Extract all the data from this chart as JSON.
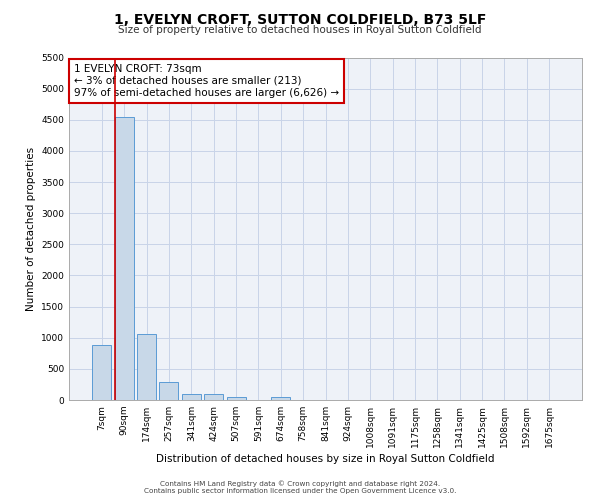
{
  "title_line1": "1, EVELYN CROFT, SUTTON COLDFIELD, B73 5LF",
  "title_line2": "Size of property relative to detached houses in Royal Sutton Coldfield",
  "xlabel": "Distribution of detached houses by size in Royal Sutton Coldfield",
  "ylabel": "Number of detached properties",
  "footer_line1": "Contains HM Land Registry data © Crown copyright and database right 2024.",
  "footer_line2": "Contains public sector information licensed under the Open Government Licence v3.0.",
  "categories": [
    "7sqm",
    "90sqm",
    "174sqm",
    "257sqm",
    "341sqm",
    "424sqm",
    "507sqm",
    "591sqm",
    "674sqm",
    "758sqm",
    "841sqm",
    "924sqm",
    "1008sqm",
    "1091sqm",
    "1175sqm",
    "1258sqm",
    "1341sqm",
    "1425sqm",
    "1508sqm",
    "1592sqm",
    "1675sqm"
  ],
  "values": [
    880,
    4550,
    1060,
    290,
    90,
    90,
    55,
    0,
    55,
    0,
    0,
    0,
    0,
    0,
    0,
    0,
    0,
    0,
    0,
    0,
    0
  ],
  "bar_color": "#c8d8e8",
  "bar_edge_color": "#5b9bd5",
  "grid_color": "#c8d4e8",
  "background_color": "#eef2f8",
  "annotation_line1": "1 EVELYN CROFT: 73sqm",
  "annotation_line2": "← 3% of detached houses are smaller (213)",
  "annotation_line3": "97% of semi-detached houses are larger (6,626) →",
  "annotation_box_color": "#ffffff",
  "annotation_box_edge_color": "#cc0000",
  "property_line_color": "#cc0000",
  "ylim": [
    0,
    5500
  ],
  "yticks": [
    0,
    500,
    1000,
    1500,
    2000,
    2500,
    3000,
    3500,
    4000,
    4500,
    5000,
    5500
  ]
}
